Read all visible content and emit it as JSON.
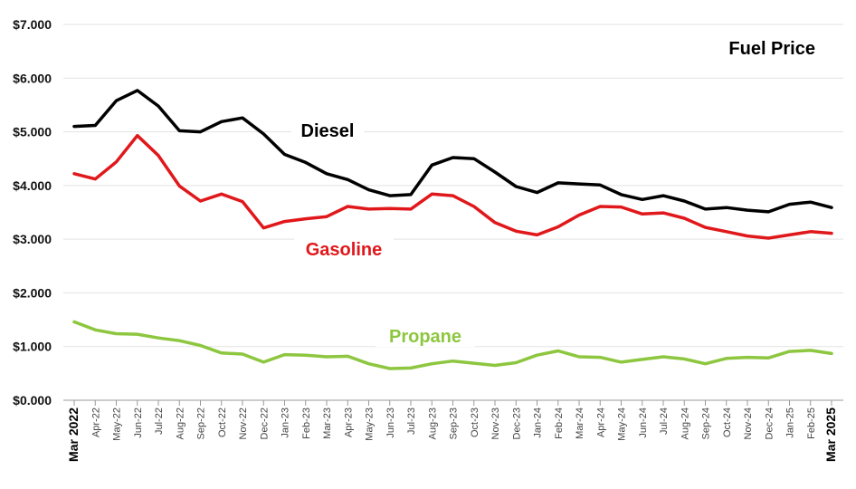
{
  "chart_data": {
    "type": "line",
    "title": "Fuel Price",
    "xlabel": "",
    "ylabel": "",
    "ylim": [
      0,
      7
    ],
    "yticks": [
      "$0.000",
      "$1.000",
      "$2.000",
      "$3.000",
      "$4.000",
      "$5.000",
      "$6.000",
      "$7.000"
    ],
    "categories": [
      "Mar 2022",
      "Apr-22",
      "May-22",
      "Jun-22",
      "Jul-22",
      "Aug-22",
      "Sep-22",
      "Oct-22",
      "Nov-22",
      "Dec-22",
      "Jan-23",
      "Feb-23",
      "Mar-23",
      "Apr-23",
      "May-23",
      "Jun-23",
      "Jul-23",
      "Aug-23",
      "Sep-23",
      "Oct-23",
      "Nov-23",
      "Dec-23",
      "Jan-24",
      "Feb-24",
      "Mar-24",
      "Apr-24",
      "May-24",
      "Jun-24",
      "Jul-24",
      "Aug-24",
      "Sep-24",
      "Oct-24",
      "Nov-24",
      "Dec-24",
      "Jan-25",
      "Feb-25",
      "Mar 2025"
    ],
    "series": [
      {
        "name": "Diesel",
        "color": "#000000",
        "values": [
          5.1,
          5.12,
          5.58,
          5.77,
          5.48,
          5.02,
          5.0,
          5.19,
          5.26,
          4.96,
          4.58,
          4.43,
          4.22,
          4.11,
          3.92,
          3.81,
          3.83,
          4.38,
          4.52,
          4.5,
          4.25,
          3.98,
          3.87,
          4.05,
          4.03,
          4.01,
          3.83,
          3.74,
          3.81,
          3.71,
          3.56,
          3.59,
          3.54,
          3.51,
          3.65,
          3.69,
          3.59
        ]
      },
      {
        "name": "Gasoline",
        "color": "#e0181b",
        "values": [
          4.22,
          4.12,
          4.44,
          4.93,
          4.56,
          3.99,
          3.71,
          3.84,
          3.7,
          3.21,
          3.33,
          3.38,
          3.42,
          3.61,
          3.56,
          3.57,
          3.56,
          3.84,
          3.81,
          3.61,
          3.31,
          3.15,
          3.08,
          3.23,
          3.45,
          3.61,
          3.6,
          3.47,
          3.49,
          3.39,
          3.22,
          3.14,
          3.06,
          3.02,
          3.08,
          3.14,
          3.11
        ]
      },
      {
        "name": "Propane",
        "color": "#8dc63f",
        "values": [
          1.46,
          1.31,
          1.24,
          1.23,
          1.16,
          1.11,
          1.02,
          0.88,
          0.86,
          0.71,
          0.85,
          0.84,
          0.81,
          0.82,
          0.68,
          0.59,
          0.6,
          0.68,
          0.73,
          0.69,
          0.65,
          0.7,
          0.84,
          0.92,
          0.81,
          0.8,
          0.71,
          0.76,
          0.81,
          0.77,
          0.68,
          0.78,
          0.8,
          0.79,
          0.91,
          0.93,
          0.87
        ]
      }
    ]
  }
}
